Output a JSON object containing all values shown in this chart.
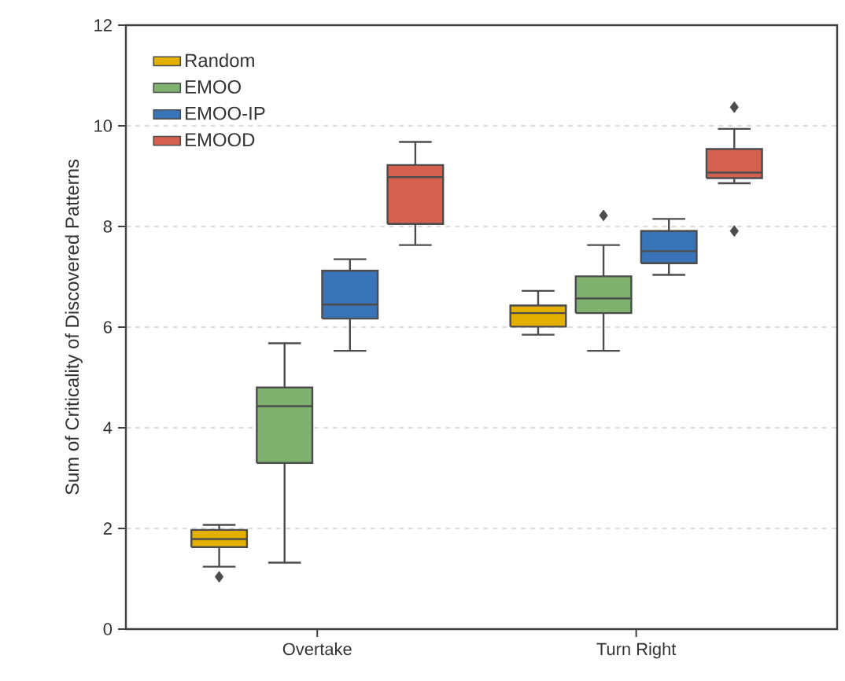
{
  "chart_data": {
    "type": "box",
    "ylabel": "Sum of Criticality of Discovered Patterns",
    "categories": [
      "Overtake",
      "Turn Right"
    ],
    "ylim": [
      0,
      12
    ],
    "yticks": [
      0,
      2,
      4,
      6,
      8,
      10,
      12
    ],
    "grid": "y",
    "legend": "top left",
    "series": [
      {
        "name": "Random",
        "color": "#e3b000",
        "boxes": [
          {
            "low": 1.24,
            "q1": 1.63,
            "median": 1.79,
            "q3": 1.97,
            "high": 2.07,
            "outliers": [
              1.04
            ]
          },
          {
            "low": 5.85,
            "q1": 6.01,
            "median": 6.28,
            "q3": 6.43,
            "high": 6.72
          }
        ]
      },
      {
        "name": "EMOO",
        "color": "#7fb26f",
        "boxes": [
          {
            "low": 1.32,
            "q1": 3.3,
            "median": 4.43,
            "q3": 4.8,
            "high": 5.68
          },
          {
            "low": 5.53,
            "q1": 6.28,
            "median": 6.57,
            "q3": 7.01,
            "high": 7.63,
            "outliers": [
              8.22
            ]
          }
        ]
      },
      {
        "name": "EMOO-IP",
        "color": "#3a74b8",
        "boxes": [
          {
            "low": 5.53,
            "q1": 6.17,
            "median": 6.45,
            "q3": 7.12,
            "high": 7.35
          },
          {
            "low": 7.04,
            "q1": 7.27,
            "median": 7.51,
            "q3": 7.91,
            "high": 8.15
          }
        ]
      },
      {
        "name": "EMOOD",
        "color": "#d6604f",
        "boxes": [
          {
            "low": 7.63,
            "q1": 8.05,
            "median": 8.98,
            "q3": 9.22,
            "high": 9.68
          },
          {
            "low": 8.86,
            "q1": 8.96,
            "median": 9.07,
            "q3": 9.54,
            "high": 9.94,
            "outliers": [
              10.37,
              7.91
            ]
          }
        ]
      }
    ]
  }
}
